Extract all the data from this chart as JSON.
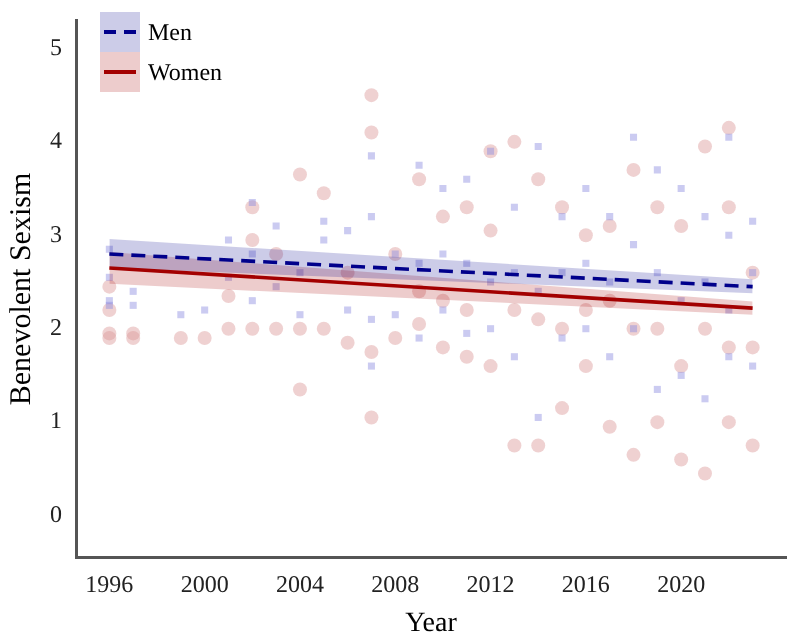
{
  "chart_data": {
    "type": "scatter",
    "xlabel": "Year",
    "ylabel": "Benevolent Sexism",
    "xlim": [
      1994.6,
      2024.4
    ],
    "ylim": [
      -0.45,
      5.3
    ],
    "xticks": [
      1996,
      2000,
      2004,
      2008,
      2012,
      2016,
      2020
    ],
    "yticks": [
      0,
      1,
      2,
      3,
      4,
      5
    ],
    "grid": false,
    "legend": "top left",
    "series": [
      {
        "marker": "square",
        "color": "#8c8ce0",
        "x": [
          1996,
          1996,
          1996,
          1996,
          1997,
          1997,
          1999,
          2000,
          2001,
          2001,
          2002,
          2002,
          2002,
          2003,
          2003,
          2004,
          2004,
          2005,
          2005,
          2006,
          2006,
          2007,
          2007,
          2007,
          2007,
          2008,
          2008,
          2009,
          2009,
          2009,
          2010,
          2010,
          2010,
          2011,
          2011,
          2011,
          2012,
          2012,
          2012,
          2013,
          2013,
          2013,
          2014,
          2014,
          2014,
          2015,
          2015,
          2015,
          2016,
          2016,
          2016,
          2017,
          2017,
          2017,
          2018,
          2018,
          2018,
          2019,
          2019,
          2019,
          2020,
          2020,
          2020,
          2021,
          2021,
          2021,
          2022,
          2022,
          2022,
          2022,
          2023,
          2023,
          2023
        ],
        "values": [
          2.85,
          2.55,
          2.3,
          2.25,
          2.4,
          2.25,
          2.15,
          2.2,
          2.95,
          2.55,
          3.35,
          2.8,
          2.3,
          3.1,
          2.45,
          2.6,
          2.15,
          3.15,
          2.95,
          3.05,
          2.2,
          3.85,
          3.2,
          2.1,
          1.6,
          2.8,
          2.15,
          3.75,
          2.7,
          1.9,
          3.5,
          2.8,
          2.2,
          3.6,
          2.7,
          1.95,
          3.9,
          2.5,
          2.0,
          3.3,
          2.6,
          1.7,
          3.95,
          2.4,
          1.05,
          3.2,
          2.6,
          1.9,
          3.5,
          2.7,
          2.0,
          3.2,
          2.5,
          1.7,
          4.05,
          2.9,
          2.0,
          3.7,
          2.6,
          1.35,
          3.5,
          2.3,
          1.5,
          3.2,
          2.5,
          1.25,
          4.05,
          3.0,
          2.2,
          1.7,
          3.15,
          2.6,
          1.6
        ]
      },
      {
        "marker": "circle",
        "color": "#dc9a9a",
        "x": [
          1996,
          1996,
          1996,
          1996,
          1997,
          1997,
          1999,
          2000,
          2001,
          2001,
          2002,
          2002,
          2002,
          2003,
          2003,
          2004,
          2004,
          2004,
          2005,
          2005,
          2006,
          2006,
          2007,
          2007,
          2007,
          2007,
          2008,
          2008,
          2009,
          2009,
          2009,
          2010,
          2010,
          2010,
          2011,
          2011,
          2011,
          2012,
          2012,
          2012,
          2013,
          2013,
          2013,
          2014,
          2014,
          2014,
          2015,
          2015,
          2015,
          2016,
          2016,
          2016,
          2017,
          2017,
          2017,
          2018,
          2018,
          2018,
          2019,
          2019,
          2019,
          2020,
          2020,
          2020,
          2021,
          2021,
          2021,
          2022,
          2022,
          2022,
          2022,
          2023,
          2023,
          2023
        ],
        "values": [
          2.45,
          2.2,
          1.95,
          1.9,
          1.95,
          1.9,
          1.9,
          1.9,
          2.35,
          2.0,
          3.3,
          2.95,
          2.0,
          2.8,
          2.0,
          3.65,
          2.0,
          1.35,
          3.45,
          2.0,
          2.6,
          1.85,
          4.5,
          4.1,
          1.75,
          1.05,
          2.8,
          1.9,
          3.6,
          2.4,
          2.05,
          3.2,
          2.3,
          1.8,
          3.3,
          2.2,
          1.7,
          3.9,
          3.05,
          1.6,
          4.0,
          2.2,
          0.75,
          3.6,
          2.1,
          0.75,
          3.3,
          2.0,
          1.15,
          3.0,
          2.2,
          1.6,
          3.1,
          2.3,
          0.95,
          3.7,
          2.0,
          0.65,
          3.3,
          2.0,
          1.0,
          3.1,
          1.6,
          0.6,
          3.95,
          2.0,
          0.45,
          4.15,
          3.3,
          1.8,
          1.0,
          2.6,
          1.8,
          0.75
        ]
      },
      {
        "type": "line",
        "name": "Men",
        "color": "#00008b",
        "line_style": "dashed",
        "x": [
          1996,
          2023
        ],
        "values": [
          2.8,
          2.45
        ],
        "lower": [
          2.65,
          2.38
        ],
        "upper": [
          2.96,
          2.53
        ]
      },
      {
        "type": "line",
        "name": "Women",
        "color": "#a30000",
        "line_style": "solid",
        "x": [
          1996,
          2023
        ],
        "values": [
          2.65,
          2.22
        ],
        "lower": [
          2.48,
          2.15
        ],
        "upper": [
          2.82,
          2.29
        ]
      }
    ]
  }
}
